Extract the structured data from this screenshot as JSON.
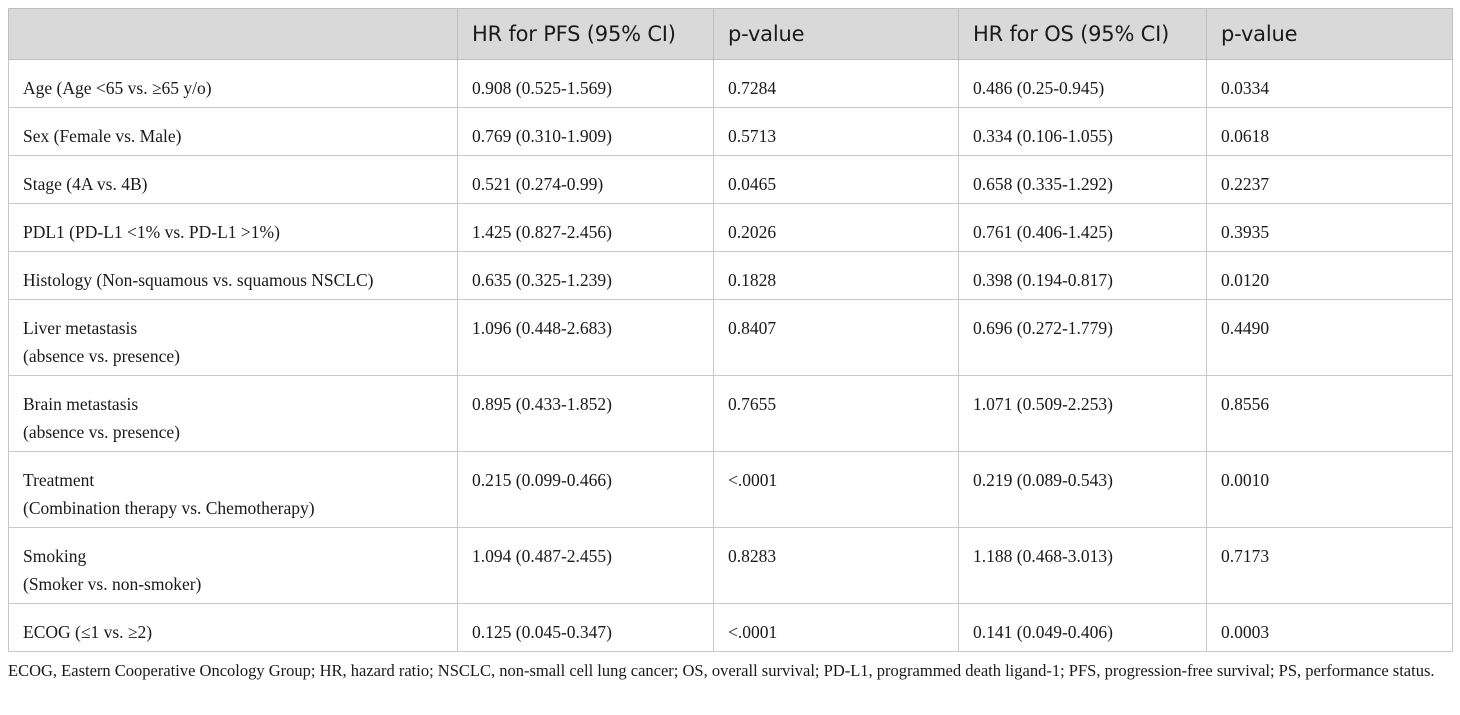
{
  "table": {
    "headers": [
      "",
      "HR for PFS (95% CI)",
      "p-value",
      "HR for OS (95% CI)",
      "p-value"
    ],
    "rows": [
      {
        "variable": "Age (Age <65 vs. ≥65 y/o)",
        "hr_pfs": "0.908 (0.525-1.569)",
        "p_pfs": "0.7284",
        "hr_os": "0.486 (0.25-0.945)",
        "p_os": "0.0334"
      },
      {
        "variable": "Sex (Female vs. Male)",
        "hr_pfs": "0.769 (0.310-1.909)",
        "p_pfs": "0.5713",
        "hr_os": "0.334 (0.106-1.055)",
        "p_os": "0.0618"
      },
      {
        "variable": "Stage (4A vs. 4B)",
        "hr_pfs": "0.521 (0.274-0.99)",
        "p_pfs": "0.0465",
        "hr_os": "0.658 (0.335-1.292)",
        "p_os": "0.2237"
      },
      {
        "variable": "PDL1 (PD-L1 <1% vs. PD-L1 >1%)",
        "hr_pfs": "1.425 (0.827-2.456)",
        "p_pfs": "0.2026",
        "hr_os": "0.761 (0.406-1.425)",
        "p_os": "0.3935"
      },
      {
        "variable": "Histology (Non-squamous vs. squamous NSCLC)",
        "hr_pfs": "0.635 (0.325-1.239)",
        "p_pfs": "0.1828",
        "hr_os": "0.398 (0.194-0.817)",
        "p_os": "0.0120"
      },
      {
        "variable": "Liver metastasis\n(absence vs. presence)",
        "hr_pfs": "1.096 (0.448-2.683)",
        "p_pfs": "0.8407",
        "hr_os": "0.696 (0.272-1.779)",
        "p_os": "0.4490"
      },
      {
        "variable": "Brain metastasis\n(absence vs. presence)",
        "hr_pfs": "0.895 (0.433-1.852)",
        "p_pfs": "0.7655",
        "hr_os": "1.071 (0.509-2.253)",
        "p_os": "0.8556"
      },
      {
        "variable": "Treatment\n(Combination therapy vs. Chemotherapy)",
        "hr_pfs": "0.215 (0.099-0.466)",
        "p_pfs": "<.0001",
        "hr_os": "0.219 (0.089-0.543)",
        "p_os": "0.0010"
      },
      {
        "variable": "Smoking\n(Smoker vs. non-smoker)",
        "hr_pfs": "1.094 (0.487-2.455)",
        "p_pfs": "0.8283",
        "hr_os": "1.188 (0.468-3.013)",
        "p_os": "0.7173"
      },
      {
        "variable": "ECOG (≤1 vs. ≥2)",
        "hr_pfs": "0.125 (0.045-0.347)",
        "p_pfs": "<.0001",
        "hr_os": "0.141 (0.049-0.406)",
        "p_os": "0.0003"
      }
    ]
  },
  "footnote": "ECOG, Eastern Cooperative Oncology Group; HR, hazard ratio; NSCLC, non-small cell lung cancer; OS, overall survival; PD-L1, programmed death ligand-1; PFS, progression-free survival; PS, performance status.",
  "colors": {
    "header_background": "#d9d9d9",
    "grid_line": "#c8c8c8",
    "text": "#1a1a1a"
  }
}
